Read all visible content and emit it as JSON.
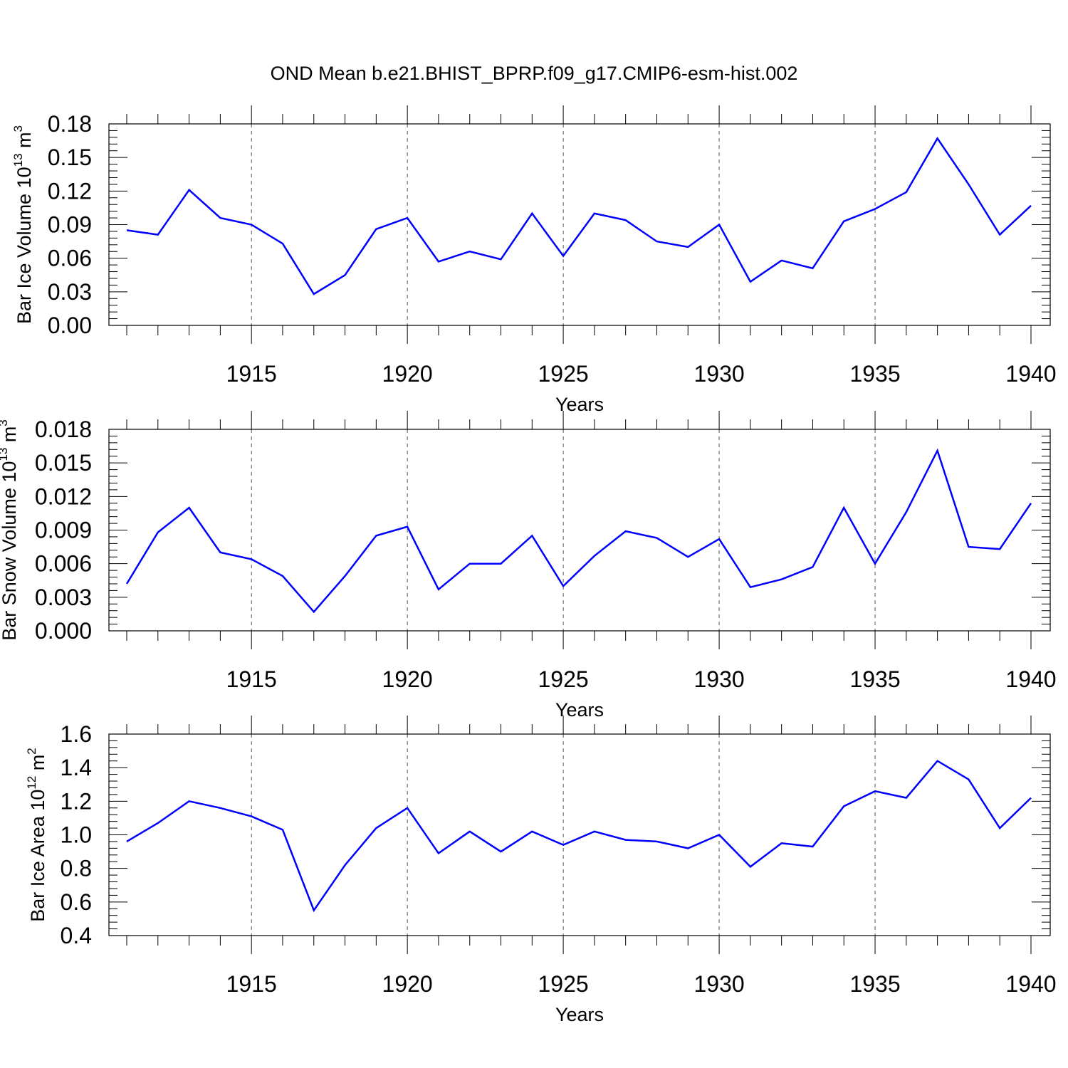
{
  "title": "OND Mean b.e21.BHIST_BPRP.f09_g17.CMIP6-esm-hist.002",
  "colors": {
    "line": "#0000ff",
    "axis": "#000000",
    "grid": "#555555"
  },
  "chart_data": [
    {
      "type": "line",
      "xlabel": "Years",
      "ylabel": {
        "text": "Bar Ice Volume 10",
        "exp": "13",
        "unit": " m",
        "unit_exp": "3"
      },
      "x": [
        1911,
        1912,
        1913,
        1914,
        1915,
        1916,
        1917,
        1918,
        1919,
        1920,
        1921,
        1922,
        1923,
        1924,
        1925,
        1926,
        1927,
        1928,
        1929,
        1930,
        1931,
        1932,
        1933,
        1934,
        1935,
        1936,
        1937,
        1938,
        1939,
        1940
      ],
      "series": [
        {
          "name": "Bar Ice Volume",
          "values": [
            0.085,
            0.081,
            0.121,
            0.096,
            0.09,
            0.073,
            0.028,
            0.045,
            0.086,
            0.096,
            0.057,
            0.066,
            0.059,
            0.1,
            0.062,
            0.1,
            0.094,
            0.075,
            0.07,
            0.09,
            0.039,
            0.058,
            0.051,
            0.093,
            0.104,
            0.119,
            0.167,
            0.126,
            0.081,
            0.107
          ]
        }
      ],
      "xlim": [
        1911,
        1940
      ],
      "ylim": [
        0.0,
        0.18
      ],
      "yticks": [
        0.0,
        0.03,
        0.06,
        0.09,
        0.12,
        0.15,
        0.18
      ],
      "ytick_labels": [
        "0.00",
        "0.03",
        "0.06",
        "0.09",
        "0.12",
        "0.15",
        "0.18"
      ],
      "yminor_step": 0.006,
      "xticks": [
        1915,
        1920,
        1925,
        1930,
        1935,
        1940
      ],
      "xtick_labels": [
        "1915",
        "1920",
        "1925",
        "1930",
        "1935",
        "1940"
      ],
      "grid_x": true
    },
    {
      "type": "line",
      "xlabel": "Years",
      "ylabel": {
        "text": "Bar Snow Volume 10",
        "exp": "13",
        "unit": " m",
        "unit_exp": "3"
      },
      "x": [
        1911,
        1912,
        1913,
        1914,
        1915,
        1916,
        1917,
        1918,
        1919,
        1920,
        1921,
        1922,
        1923,
        1924,
        1925,
        1926,
        1927,
        1928,
        1929,
        1930,
        1931,
        1932,
        1933,
        1934,
        1935,
        1936,
        1937,
        1938,
        1939,
        1940
      ],
      "series": [
        {
          "name": "Bar Snow Volume",
          "values": [
            0.0042,
            0.0088,
            0.011,
            0.007,
            0.0064,
            0.0049,
            0.0017,
            0.0049,
            0.0085,
            0.0093,
            0.0037,
            0.006,
            0.006,
            0.0085,
            0.004,
            0.0067,
            0.0089,
            0.0083,
            0.0066,
            0.0082,
            0.0039,
            0.0046,
            0.0057,
            0.011,
            0.006,
            0.0106,
            0.0161,
            0.0075,
            0.0073,
            0.0114
          ]
        }
      ],
      "xlim": [
        1911,
        1940
      ],
      "ylim": [
        0.0,
        0.018
      ],
      "yticks": [
        0.0,
        0.003,
        0.006,
        0.009,
        0.012,
        0.015,
        0.018
      ],
      "ytick_labels": [
        "0.000",
        "0.003",
        "0.006",
        "0.009",
        "0.012",
        "0.015",
        "0.018"
      ],
      "yminor_step": 0.0006,
      "xticks": [
        1915,
        1920,
        1925,
        1930,
        1935,
        1940
      ],
      "xtick_labels": [
        "1915",
        "1920",
        "1925",
        "1930",
        "1935",
        "1940"
      ],
      "grid_x": true
    },
    {
      "type": "line",
      "xlabel": "Years",
      "ylabel": {
        "text": "Bar Ice Area 10",
        "exp": "12",
        "unit": " m",
        "unit_exp": "2"
      },
      "x": [
        1911,
        1912,
        1913,
        1914,
        1915,
        1916,
        1917,
        1918,
        1919,
        1920,
        1921,
        1922,
        1923,
        1924,
        1925,
        1926,
        1927,
        1928,
        1929,
        1930,
        1931,
        1932,
        1933,
        1934,
        1935,
        1936,
        1937,
        1938,
        1939,
        1940
      ],
      "series": [
        {
          "name": "Bar Ice Area",
          "values": [
            0.96,
            1.07,
            1.2,
            1.16,
            1.11,
            1.03,
            0.55,
            0.82,
            1.04,
            1.16,
            0.89,
            1.02,
            0.9,
            1.02,
            0.94,
            1.02,
            0.97,
            0.96,
            0.92,
            1.0,
            0.81,
            0.95,
            0.93,
            1.17,
            1.26,
            1.22,
            1.44,
            1.33,
            1.04,
            1.22
          ]
        }
      ],
      "xlim": [
        1911,
        1940
      ],
      "ylim": [
        0.4,
        1.6
      ],
      "yticks": [
        0.4,
        0.6,
        0.8,
        1.0,
        1.2,
        1.4,
        1.6
      ],
      "ytick_labels": [
        "0.4",
        "0.6",
        "0.8",
        "1.0",
        "1.2",
        "1.4",
        "1.6"
      ],
      "yminor_step": 0.04,
      "xticks": [
        1915,
        1920,
        1925,
        1930,
        1935,
        1940
      ],
      "xtick_labels": [
        "1915",
        "1920",
        "1925",
        "1930",
        "1935",
        "1940"
      ],
      "grid_x": true
    }
  ]
}
